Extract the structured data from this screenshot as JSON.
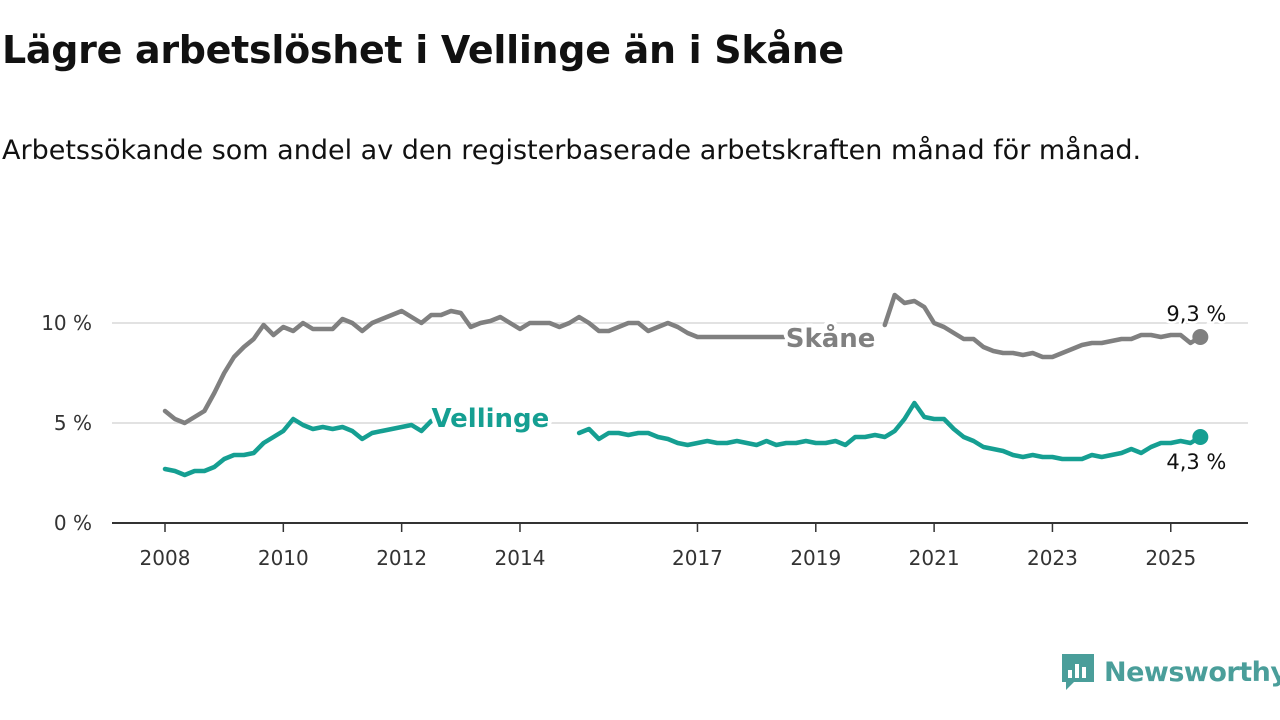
{
  "header": {
    "title": "Lägre arbetslöshet i Vellinge än i Skåne",
    "subtitle": "Arbetssökande som andel av den registerbaserade arbetskraften månad för månad."
  },
  "brand": {
    "name": "Newsworthy",
    "icon": "newsworthy-logo-icon"
  },
  "colors": {
    "skane": "#808080",
    "vellinge": "#159f92",
    "grid": "#d9d9d9",
    "axis": "#333333"
  },
  "chart_data": {
    "type": "line",
    "title": "Lägre arbetslöshet i Vellinge än i Skåne",
    "subtitle": "Arbetssökande som andel av den registerbaserade arbetskraften månad för månad.",
    "xlabel": "",
    "ylabel": "",
    "ylim": [
      0,
      12
    ],
    "xlim": [
      "2008-01",
      "2025-12"
    ],
    "grid": true,
    "y_ticks": [
      {
        "value": 0,
        "label": "0 %"
      },
      {
        "value": 5,
        "label": "5 %"
      },
      {
        "value": 10,
        "label": "10 %"
      }
    ],
    "x_ticks": [
      {
        "value": "2008-01",
        "label": "2008"
      },
      {
        "value": "2010-01",
        "label": "2010"
      },
      {
        "value": "2012-01",
        "label": "2012"
      },
      {
        "value": "2014-01",
        "label": "2014"
      },
      {
        "value": "2017-01",
        "label": "2017"
      },
      {
        "value": "2019-01",
        "label": "2019"
      },
      {
        "value": "2021-01",
        "label": "2021"
      },
      {
        "value": "2023-01",
        "label": "2023"
      },
      {
        "value": "2025-01",
        "label": "2025"
      }
    ],
    "series": [
      {
        "name": "Skåne",
        "end_label": "9,3 %",
        "x": [
          "2008-01",
          "2008-03",
          "2008-05",
          "2008-07",
          "2008-09",
          "2008-11",
          "2009-01",
          "2009-03",
          "2009-05",
          "2009-07",
          "2009-09",
          "2009-11",
          "2010-01",
          "2010-03",
          "2010-05",
          "2010-07",
          "2010-09",
          "2010-11",
          "2011-01",
          "2011-03",
          "2011-05",
          "2011-07",
          "2011-09",
          "2011-11",
          "2012-01",
          "2012-03",
          "2012-05",
          "2012-07",
          "2012-09",
          "2012-11",
          "2013-01",
          "2013-03",
          "2013-05",
          "2013-07",
          "2013-09",
          "2013-11",
          "2014-01",
          "2014-03",
          "2014-05",
          "2014-07",
          "2014-09",
          "2014-11",
          "2015-01",
          "2015-03",
          "2015-05",
          "2015-07",
          "2015-09",
          "2015-11",
          "2016-01",
          "2016-03",
          "2016-05",
          "2016-07",
          "2016-09",
          "2016-11",
          "2017-01",
          "2017-03",
          "2017-05",
          "2017-07",
          "2017-09",
          "2017-11",
          "2018-01",
          "2018-03",
          "2018-05",
          "2018-07",
          "2018-09",
          null,
          "2020-03",
          "2020-05",
          "2020-07",
          "2020-09",
          "2020-11",
          "2021-01",
          "2021-03",
          "2021-05",
          "2021-07",
          "2021-09",
          "2021-11",
          "2022-01",
          "2022-03",
          "2022-05",
          "2022-07",
          "2022-09",
          "2022-11",
          "2023-01",
          "2023-03",
          "2023-05",
          "2023-07",
          "2023-09",
          "2023-11",
          "2024-01",
          "2024-03",
          "2024-05",
          "2024-07",
          "2024-09",
          "2024-11",
          "2025-01",
          "2025-03",
          "2025-05",
          "2025-07"
        ],
        "values": [
          5.6,
          5.2,
          5.0,
          5.3,
          5.6,
          6.5,
          7.5,
          8.3,
          8.8,
          9.2,
          9.9,
          9.4,
          9.8,
          9.6,
          10.0,
          9.7,
          9.7,
          9.7,
          10.2,
          10.0,
          9.6,
          10.0,
          10.2,
          10.4,
          10.6,
          10.3,
          10.0,
          10.4,
          10.4,
          10.6,
          10.5,
          9.8,
          10.0,
          10.1,
          10.3,
          10.0,
          9.7,
          10.0,
          10.0,
          10.0,
          9.8,
          10.0,
          10.3,
          10.0,
          9.6,
          9.6,
          9.8,
          10.0,
          10.0,
          9.6,
          9.8,
          10.0,
          9.8,
          9.5,
          9.3,
          9.3,
          9.3,
          9.3,
          9.3,
          9.3,
          9.3,
          9.3,
          9.3,
          9.3,
          9.3,
          null,
          9.9,
          11.4,
          11.0,
          11.1,
          10.8,
          10.0,
          9.8,
          9.5,
          9.2,
          9.2,
          8.8,
          8.6,
          8.5,
          8.5,
          8.4,
          8.5,
          8.3,
          8.3,
          8.5,
          8.7,
          8.9,
          9.0,
          9.0,
          9.1,
          9.2,
          9.2,
          9.4,
          9.4,
          9.3,
          9.4,
          9.4,
          9.0,
          9.3
        ]
      },
      {
        "name": "Vellinge",
        "end_label": "4,3 %",
        "x": [
          "2008-01",
          "2008-03",
          "2008-05",
          "2008-07",
          "2008-09",
          "2008-11",
          "2009-01",
          "2009-03",
          "2009-05",
          "2009-07",
          "2009-09",
          "2009-11",
          "2010-01",
          "2010-03",
          "2010-05",
          "2010-07",
          "2010-09",
          "2010-11",
          "2011-01",
          "2011-03",
          "2011-05",
          "2011-07",
          "2011-09",
          "2011-11",
          "2012-01",
          "2012-03",
          "2012-05",
          "2012-07",
          "2012-09",
          "2012-11",
          null,
          "2015-01",
          "2015-03",
          "2015-05",
          "2015-07",
          "2015-09",
          "2015-11",
          "2016-01",
          "2016-03",
          "2016-05",
          "2016-07",
          "2016-09",
          "2016-11",
          "2017-01",
          "2017-03",
          "2017-05",
          "2017-07",
          "2017-09",
          "2017-11",
          "2018-01",
          "2018-03",
          "2018-05",
          "2018-07",
          "2018-09",
          "2018-11",
          "2019-01",
          "2019-03",
          "2019-05",
          "2019-07",
          "2019-09",
          "2019-11",
          "2020-01",
          "2020-03",
          "2020-05",
          "2020-07",
          "2020-09",
          "2020-11",
          "2021-01",
          "2021-03",
          "2021-05",
          "2021-07",
          "2021-09",
          "2021-11",
          "2022-01",
          "2022-03",
          "2022-05",
          "2022-07",
          "2022-09",
          "2022-11",
          "2023-01",
          "2023-03",
          "2023-05",
          "2023-07",
          "2023-09",
          "2023-11",
          "2024-01",
          "2024-03",
          "2024-05",
          "2024-07",
          "2024-09",
          "2024-11",
          "2025-01",
          "2025-03",
          "2025-05",
          "2025-07"
        ],
        "values": [
          2.7,
          2.6,
          2.4,
          2.6,
          2.6,
          2.8,
          3.2,
          3.4,
          3.4,
          3.5,
          4.0,
          4.3,
          4.6,
          5.2,
          4.9,
          4.7,
          4.8,
          4.7,
          4.8,
          4.6,
          4.2,
          4.5,
          4.6,
          4.7,
          4.8,
          4.9,
          4.6,
          5.1,
          5.3,
          5.1,
          null,
          4.5,
          4.7,
          4.2,
          4.5,
          4.5,
          4.4,
          4.5,
          4.5,
          4.3,
          4.2,
          4.0,
          3.9,
          4.0,
          4.1,
          4.0,
          4.0,
          4.1,
          4.0,
          3.9,
          4.1,
          3.9,
          4.0,
          4.0,
          4.1,
          4.0,
          4.0,
          4.1,
          3.9,
          4.3,
          4.3,
          4.4,
          4.3,
          4.6,
          5.2,
          6.0,
          5.3,
          5.2,
          5.2,
          4.7,
          4.3,
          4.1,
          3.8,
          3.7,
          3.6,
          3.4,
          3.3,
          3.4,
          3.3,
          3.3,
          3.2,
          3.2,
          3.2,
          3.4,
          3.3,
          3.4,
          3.5,
          3.7,
          3.5,
          3.8,
          4.0,
          4.0,
          4.1,
          4.0,
          4.3
        ]
      }
    ]
  }
}
